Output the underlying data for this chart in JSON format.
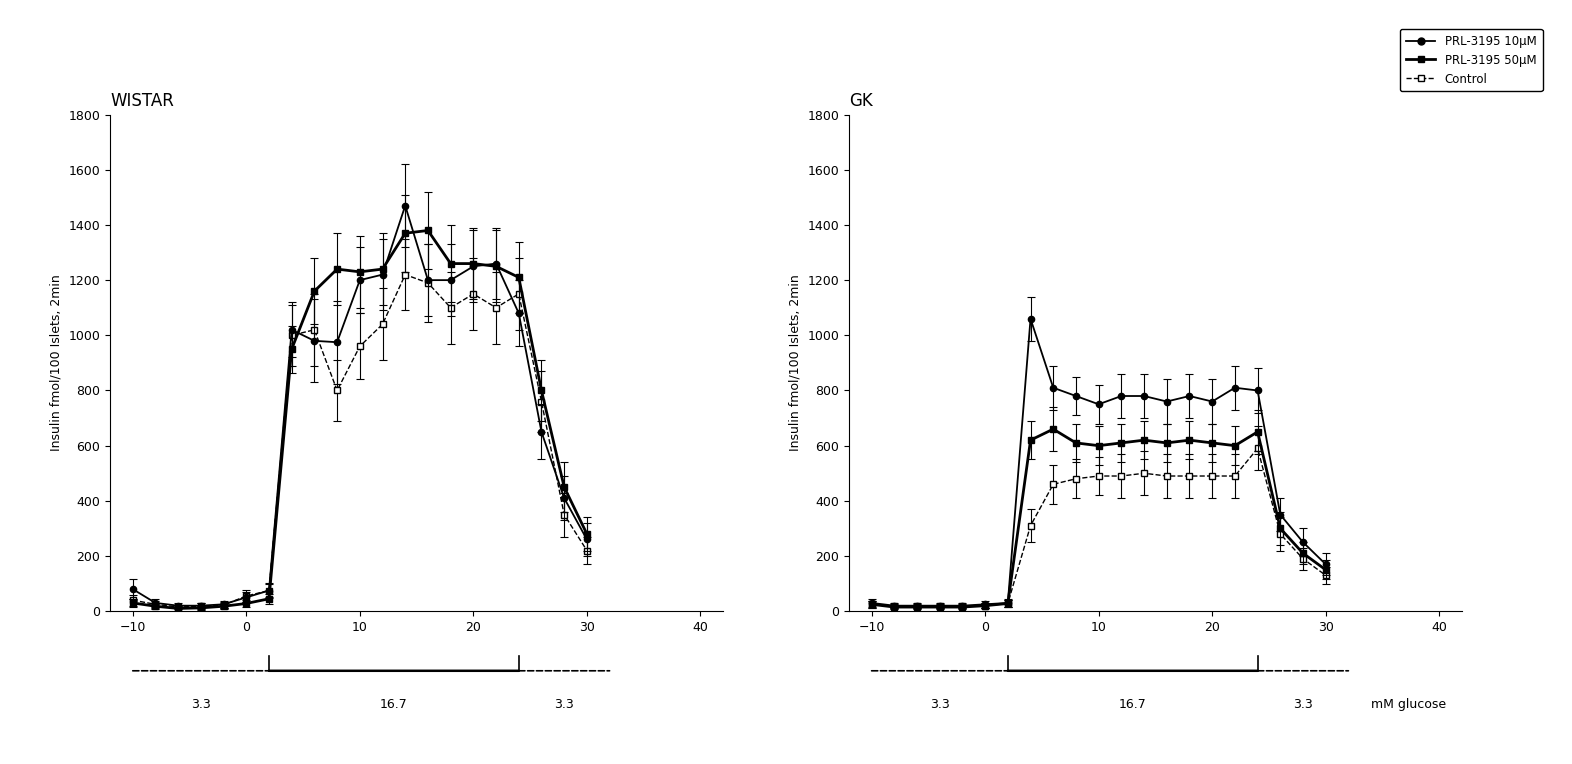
{
  "wistar_x": [
    -10,
    -8,
    -6,
    -4,
    -2,
    0,
    2,
    4,
    6,
    8,
    10,
    12,
    14,
    16,
    18,
    20,
    22,
    24,
    26,
    28,
    30
  ],
  "wistar_prl10": [
    80,
    30,
    20,
    20,
    25,
    50,
    75,
    1020,
    980,
    975,
    1200,
    1220,
    1470,
    1200,
    1200,
    1250,
    1260,
    1080,
    650,
    410,
    260
  ],
  "wistar_prl10_err": [
    35,
    15,
    10,
    10,
    12,
    18,
    25,
    100,
    150,
    150,
    120,
    130,
    150,
    130,
    130,
    130,
    130,
    120,
    100,
    80,
    60
  ],
  "wistar_prl50": [
    30,
    18,
    10,
    12,
    18,
    28,
    45,
    950,
    1160,
    1240,
    1230,
    1240,
    1370,
    1380,
    1260,
    1260,
    1250,
    1210,
    800,
    450,
    280
  ],
  "wistar_prl50_err": [
    15,
    10,
    8,
    8,
    10,
    14,
    18,
    85,
    120,
    130,
    130,
    130,
    140,
    140,
    140,
    130,
    130,
    130,
    110,
    90,
    60
  ],
  "wistar_ctrl": [
    40,
    25,
    15,
    18,
    22,
    55,
    75,
    1000,
    1020,
    800,
    960,
    1040,
    1220,
    1190,
    1100,
    1150,
    1100,
    1150,
    760,
    350,
    220
  ],
  "wistar_ctrl_err": [
    20,
    12,
    8,
    10,
    12,
    22,
    28,
    110,
    130,
    110,
    120,
    130,
    130,
    140,
    130,
    130,
    130,
    130,
    110,
    80,
    50
  ],
  "gk_x": [
    -10,
    -8,
    -6,
    -4,
    -2,
    0,
    2,
    4,
    6,
    8,
    10,
    12,
    14,
    16,
    18,
    20,
    22,
    24,
    26,
    28,
    30
  ],
  "gk_prl10": [
    30,
    20,
    20,
    20,
    20,
    25,
    30,
    1060,
    810,
    780,
    750,
    780,
    780,
    760,
    780,
    760,
    810,
    800,
    350,
    250,
    170
  ],
  "gk_prl10_err": [
    15,
    10,
    10,
    10,
    10,
    12,
    15,
    80,
    80,
    70,
    70,
    80,
    80,
    80,
    80,
    80,
    80,
    80,
    60,
    50,
    40
  ],
  "gk_prl50": [
    25,
    15,
    15,
    15,
    15,
    20,
    28,
    620,
    660,
    610,
    600,
    610,
    620,
    610,
    620,
    610,
    600,
    650,
    300,
    210,
    150
  ],
  "gk_prl50_err": [
    12,
    8,
    8,
    8,
    8,
    10,
    12,
    70,
    80,
    70,
    70,
    70,
    70,
    70,
    70,
    70,
    70,
    80,
    60,
    40,
    35
  ],
  "gk_ctrl": [
    25,
    18,
    18,
    18,
    18,
    20,
    28,
    310,
    460,
    480,
    490,
    490,
    500,
    490,
    490,
    490,
    490,
    590,
    280,
    190,
    130
  ],
  "gk_ctrl_err": [
    12,
    8,
    8,
    8,
    8,
    10,
    12,
    60,
    70,
    70,
    70,
    80,
    80,
    80,
    80,
    80,
    80,
    80,
    60,
    40,
    30
  ],
  "wistar_title": "WISTAR",
  "gk_title": "GK",
  "ylabel": "Insulin fmol/100 Islets, 2min",
  "xlabel_right": "mM glucose",
  "ylim": [
    0,
    1800
  ],
  "xlim": [
    -12,
    42
  ],
  "xticks": [
    -10,
    0,
    10,
    20,
    30,
    40
  ],
  "yticks": [
    0,
    200,
    400,
    600,
    800,
    1000,
    1200,
    1400,
    1600,
    1800
  ],
  "legend_labels": [
    "PRL-3195 10μM",
    "PRL-3195 50μM",
    "Control"
  ],
  "background_color": "#ffffff"
}
